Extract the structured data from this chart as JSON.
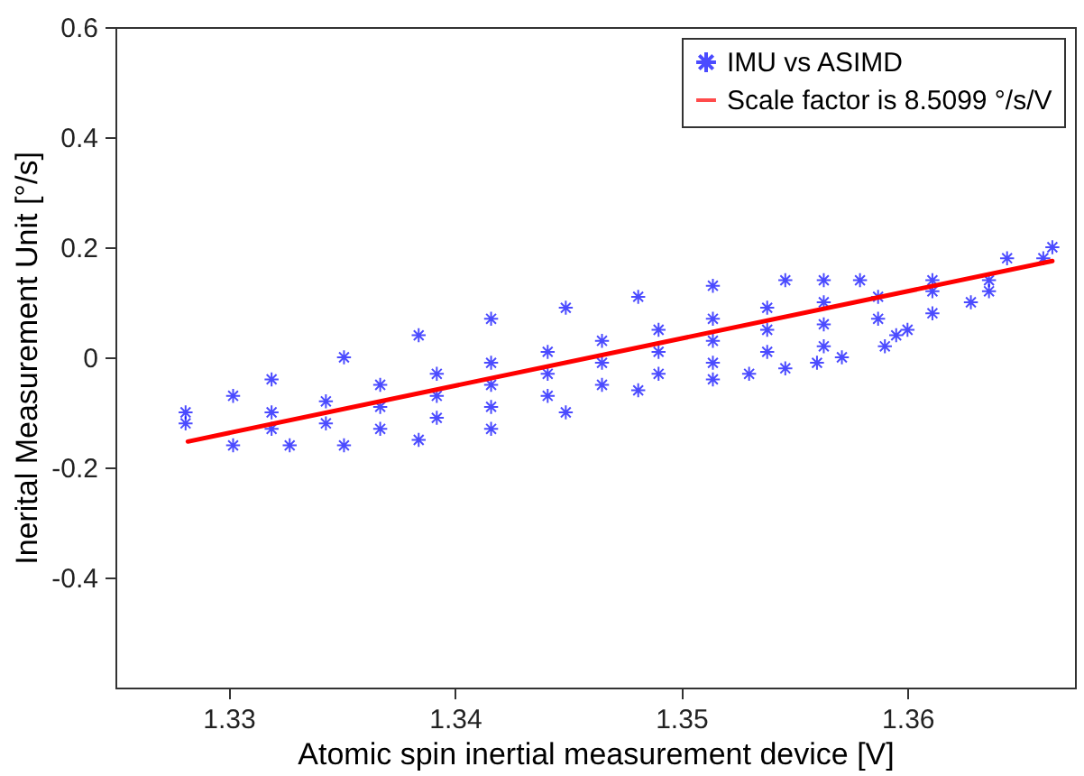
{
  "chart_data": {
    "type": "scatter",
    "xlabel": "Atomic spin inertial measurement device [V]",
    "ylabel": "Inerital Measurement Unit [°/s]",
    "xlim": [
      1.325,
      1.3674
    ],
    "xticks": [
      1.33,
      1.34,
      1.35,
      1.36
    ],
    "ylim": [
      -0.6,
      0.6
    ],
    "yticks": [
      -0.4,
      -0.2,
      0,
      0.2,
      0.4,
      0.6
    ],
    "grid": false,
    "legend": "top right",
    "series": [
      {
        "name": "IMU vs ASIMD",
        "marker": "cross",
        "color": "#0000ff",
        "x": [
          1.3281,
          1.3302,
          1.3319,
          1.3351,
          1.3384,
          1.3416,
          1.3449,
          1.3481,
          1.3514,
          1.3546,
          1.3563,
          1.3579,
          1.3611,
          1.3644,
          1.3664,
          1.3281,
          1.3302,
          1.3327,
          1.3351,
          1.3384,
          1.3416,
          1.3449,
          1.3481,
          1.3514,
          1.3546,
          1.3571,
          1.3595,
          1.3628,
          1.366,
          1.3319,
          1.3319,
          1.3343,
          1.3343,
          1.3367,
          1.3367,
          1.3367,
          1.3392,
          1.3392,
          1.3392,
          1.3416,
          1.3416,
          1.3416,
          1.3441,
          1.3441,
          1.3441,
          1.3465,
          1.3465,
          1.3465,
          1.349,
          1.349,
          1.349,
          1.3514,
          1.3514,
          1.3514,
          1.3538,
          1.3538,
          1.3538,
          1.3563,
          1.3563,
          1.3563,
          1.3587,
          1.3587,
          1.3611,
          1.3611,
          1.3636,
          1.3636,
          1.353,
          1.356,
          1.359,
          1.36
        ],
        "values": [
          -0.1,
          -0.07,
          -0.04,
          0.0,
          0.04,
          0.07,
          0.09,
          0.11,
          0.13,
          0.14,
          0.14,
          0.14,
          0.14,
          0.18,
          0.2,
          -0.12,
          -0.16,
          -0.16,
          -0.16,
          -0.15,
          -0.13,
          -0.1,
          -0.06,
          -0.04,
          -0.02,
          0.0,
          0.04,
          0.1,
          0.18,
          -0.1,
          -0.13,
          -0.08,
          -0.12,
          -0.05,
          -0.09,
          -0.13,
          -0.03,
          -0.07,
          -0.11,
          -0.01,
          -0.05,
          -0.09,
          0.01,
          -0.03,
          -0.07,
          0.03,
          -0.01,
          -0.05,
          0.05,
          0.01,
          -0.03,
          0.07,
          0.03,
          -0.01,
          0.09,
          0.05,
          0.01,
          0.1,
          0.06,
          0.02,
          0.11,
          0.07,
          0.12,
          0.08,
          0.14,
          0.12,
          -0.03,
          -0.01,
          0.02,
          0.05
        ]
      },
      {
        "name": "Scale factor is 8.5099 °/s/V",
        "type": "line",
        "line_style": "solid",
        "color": "#ff0000",
        "x": [
          1.3282,
          1.3664
        ],
        "values": [
          -0.153,
          0.175
        ]
      }
    ]
  }
}
